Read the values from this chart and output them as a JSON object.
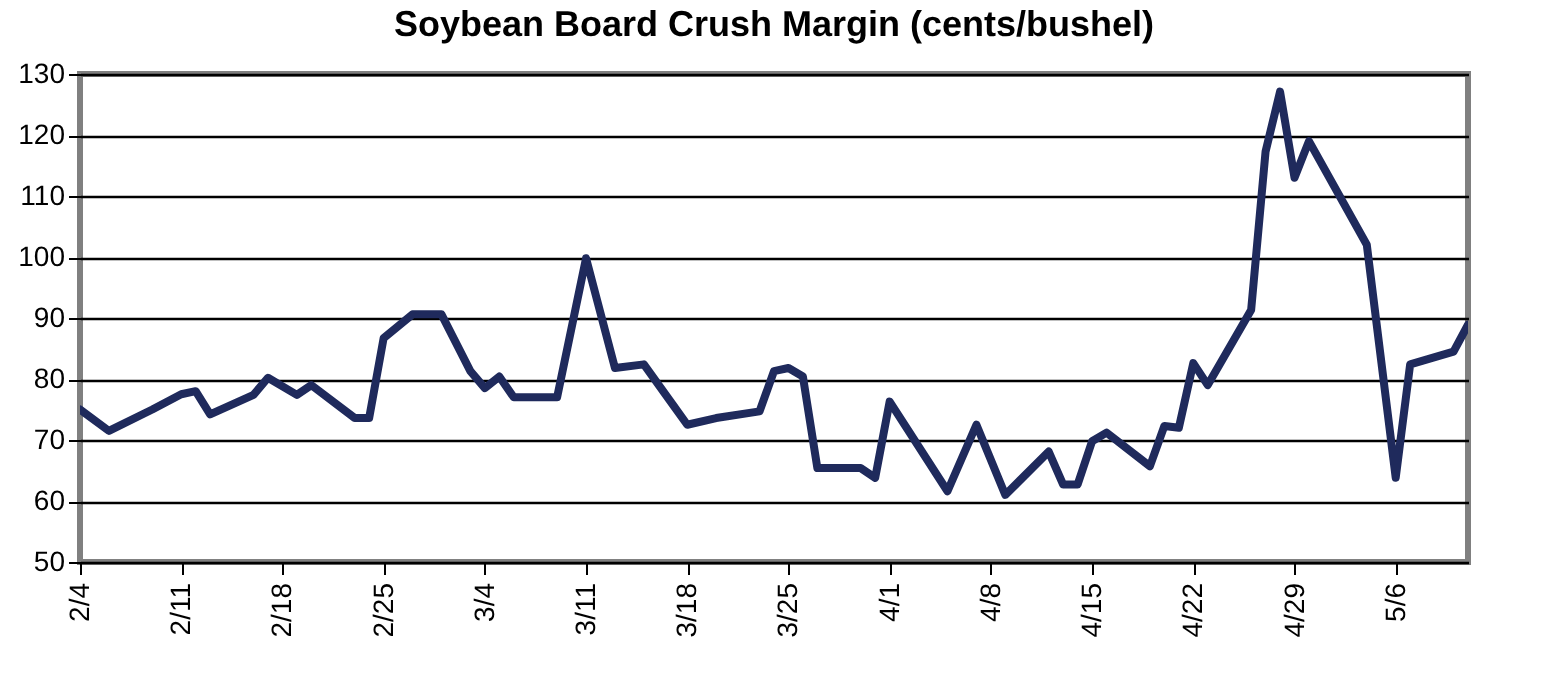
{
  "chart_data": {
    "type": "line",
    "title": "Soybean Board Crush Margin (cents/bushel)",
    "x": [
      "--02-04",
      "--02-06",
      "--02-09",
      "--02-11",
      "--02-12",
      "--02-13",
      "--02-16",
      "--02-17",
      "--02-19",
      "--02-20",
      "--02-23",
      "--02-24",
      "--02-25",
      "--02-27",
      "--03-01",
      "--03-03",
      "--03-04",
      "--03-05",
      "--03-06",
      "--03-09",
      "--03-11",
      "--03-13",
      "--03-15",
      "--03-17",
      "--03-18",
      "--03-20",
      "--03-23",
      "--03-24",
      "--03-25",
      "--03-26",
      "--03-27",
      "--03-30",
      "--03-31",
      "--04-01",
      "--04-05",
      "--04-07",
      "--04-09",
      "--04-12",
      "--04-13",
      "--04-14",
      "--04-15",
      "--04-16",
      "--04-19",
      "--04-20",
      "--04-21",
      "--04-22",
      "--04-23",
      "--04-26",
      "--04-27",
      "--04-28",
      "--04-29",
      "--04-30",
      "--05-04",
      "--05-06",
      "--05-07",
      "--05-10",
      "--05-11"
    ],
    "series": [
      {
        "color": "#1f2a5c",
        "values": [
          75,
          71.5,
          75,
          77.5,
          78,
          74.2,
          77.4,
          80.2,
          77.4,
          79,
          73.6,
          73.6,
          86.7,
          90.6,
          90.6,
          81.3,
          78.5,
          80.4,
          77,
          77,
          99.8,
          81.8,
          82.4,
          75.8,
          72.5,
          73.6,
          74.7,
          81.3,
          81.8,
          80.4,
          65.4,
          65.4,
          63.8,
          76.3,
          61.6,
          72.5,
          61,
          68.1,
          62.7,
          62.7,
          69.8,
          71.2,
          65.7,
          72.3,
          72,
          82.6,
          79,
          91.3,
          117.3,
          127.1,
          113,
          119,
          102,
          63.8,
          82.4,
          84.5,
          88.9
        ]
      }
    ],
    "xlim": [
      "--02-04",
      "--05-11"
    ],
    "xticks": [
      {
        "value": "--02-04",
        "label": "2/4"
      },
      {
        "value": "--02-11",
        "label": "2/11"
      },
      {
        "value": "--02-18",
        "label": "2/18"
      },
      {
        "value": "--02-25",
        "label": "2/25"
      },
      {
        "value": "--03-04",
        "label": "3/4"
      },
      {
        "value": "--03-11",
        "label": "3/11"
      },
      {
        "value": "--03-18",
        "label": "3/18"
      },
      {
        "value": "--03-25",
        "label": "3/25"
      },
      {
        "value": "--04-01",
        "label": "4/1"
      },
      {
        "value": "--04-08",
        "label": "4/8"
      },
      {
        "value": "--04-15",
        "label": "4/15"
      },
      {
        "value": "--04-22",
        "label": "4/22"
      },
      {
        "value": "--04-29",
        "label": "4/29"
      },
      {
        "value": "--05-06",
        "label": "5/6"
      }
    ],
    "ylim": [
      50,
      130
    ],
    "yticks": [
      50,
      60,
      70,
      80,
      90,
      100,
      110,
      120,
      130
    ],
    "grid": "y",
    "marker": "none",
    "line_style": "solid"
  }
}
